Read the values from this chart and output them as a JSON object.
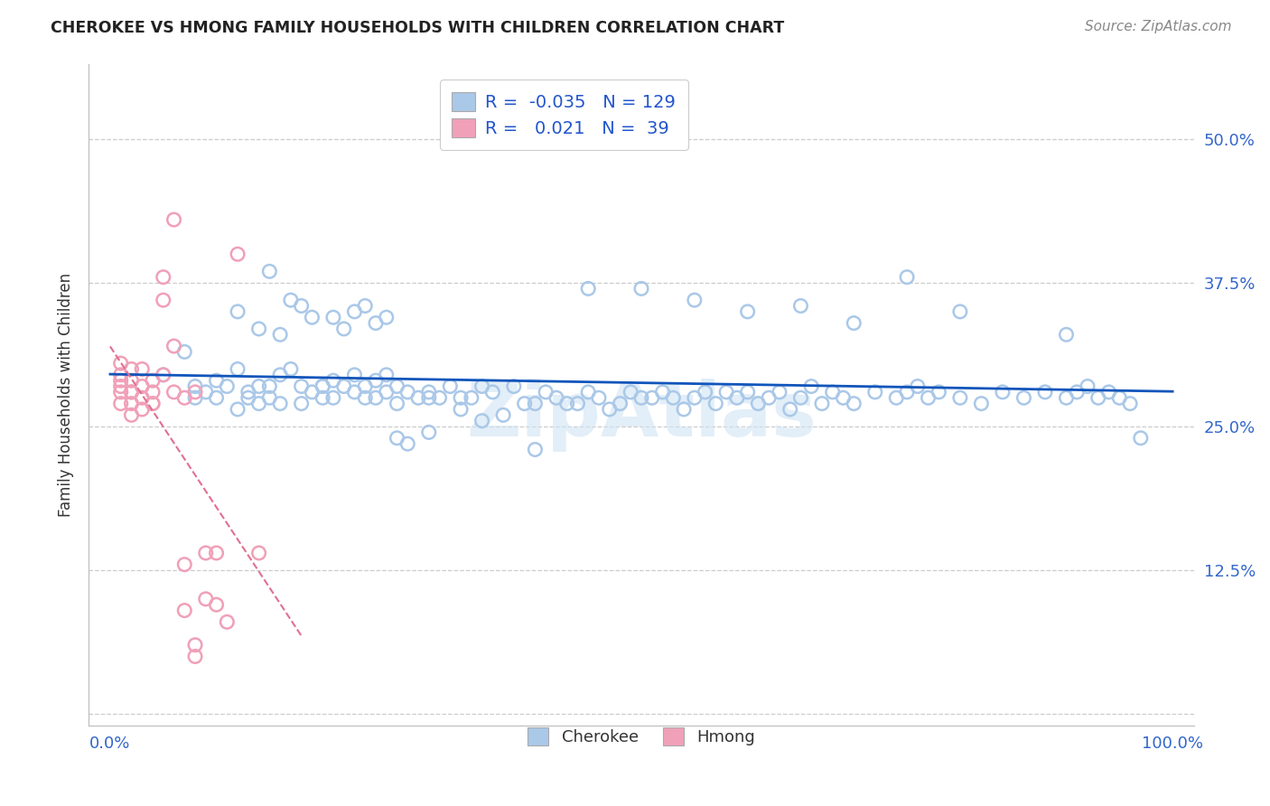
{
  "title": "CHEROKEE VS HMONG FAMILY HOUSEHOLDS WITH CHILDREN CORRELATION CHART",
  "source": "Source: ZipAtlas.com",
  "ylabel": "Family Households with Children",
  "xlim": [
    -0.02,
    1.02
  ],
  "ylim": [
    -0.01,
    0.565
  ],
  "yticks": [
    0.0,
    0.125,
    0.25,
    0.375,
    0.5
  ],
  "cherokee_R": -0.035,
  "cherokee_N": 129,
  "hmong_R": 0.021,
  "hmong_N": 39,
  "cherokee_color": "#aac8e8",
  "hmong_color": "#f0a0b8",
  "cherokee_line_color": "#1155bb",
  "hmong_line_color": "#e07090",
  "legend_text_color": "#2255cc",
  "tick_color": "#3366cc",
  "background_color": "#ffffff",
  "grid_color": "#cccccc",
  "cherokee_x": [
    0.05,
    0.07,
    0.08,
    0.08,
    0.09,
    0.1,
    0.1,
    0.11,
    0.12,
    0.12,
    0.13,
    0.13,
    0.14,
    0.14,
    0.15,
    0.15,
    0.16,
    0.16,
    0.17,
    0.18,
    0.18,
    0.19,
    0.2,
    0.2,
    0.21,
    0.21,
    0.22,
    0.23,
    0.23,
    0.24,
    0.24,
    0.25,
    0.25,
    0.26,
    0.26,
    0.27,
    0.27,
    0.28,
    0.29,
    0.3,
    0.3,
    0.31,
    0.32,
    0.33,
    0.33,
    0.34,
    0.35,
    0.36,
    0.37,
    0.38,
    0.39,
    0.4,
    0.41,
    0.42,
    0.43,
    0.44,
    0.45,
    0.46,
    0.47,
    0.48,
    0.49,
    0.5,
    0.51,
    0.52,
    0.53,
    0.54,
    0.55,
    0.56,
    0.57,
    0.58,
    0.59,
    0.6,
    0.61,
    0.62,
    0.63,
    0.64,
    0.65,
    0.66,
    0.67,
    0.68,
    0.69,
    0.7,
    0.72,
    0.74,
    0.75,
    0.76,
    0.77,
    0.78,
    0.8,
    0.82,
    0.84,
    0.86,
    0.88,
    0.9,
    0.91,
    0.92,
    0.93,
    0.94,
    0.95,
    0.96,
    0.12,
    0.14,
    0.15,
    0.16,
    0.17,
    0.18,
    0.19,
    0.2,
    0.21,
    0.22,
    0.23,
    0.24,
    0.25,
    0.26,
    0.27,
    0.28,
    0.3,
    0.35,
    0.4,
    0.45,
    0.5,
    0.55,
    0.6,
    0.65,
    0.7,
    0.75,
    0.8,
    0.9,
    0.97
  ],
  "cherokee_y": [
    0.295,
    0.315,
    0.285,
    0.275,
    0.28,
    0.29,
    0.275,
    0.285,
    0.3,
    0.265,
    0.28,
    0.275,
    0.285,
    0.27,
    0.275,
    0.285,
    0.295,
    0.27,
    0.3,
    0.27,
    0.285,
    0.28,
    0.285,
    0.275,
    0.29,
    0.275,
    0.285,
    0.28,
    0.295,
    0.275,
    0.285,
    0.275,
    0.29,
    0.28,
    0.295,
    0.27,
    0.285,
    0.28,
    0.275,
    0.28,
    0.275,
    0.275,
    0.285,
    0.275,
    0.265,
    0.275,
    0.285,
    0.28,
    0.26,
    0.285,
    0.27,
    0.27,
    0.28,
    0.275,
    0.27,
    0.27,
    0.28,
    0.275,
    0.265,
    0.27,
    0.28,
    0.275,
    0.275,
    0.28,
    0.275,
    0.265,
    0.275,
    0.28,
    0.27,
    0.28,
    0.275,
    0.28,
    0.27,
    0.275,
    0.28,
    0.265,
    0.275,
    0.285,
    0.27,
    0.28,
    0.275,
    0.27,
    0.28,
    0.275,
    0.28,
    0.285,
    0.275,
    0.28,
    0.275,
    0.27,
    0.28,
    0.275,
    0.28,
    0.275,
    0.28,
    0.285,
    0.275,
    0.28,
    0.275,
    0.27,
    0.35,
    0.335,
    0.385,
    0.33,
    0.36,
    0.355,
    0.345,
    0.285,
    0.345,
    0.335,
    0.35,
    0.355,
    0.34,
    0.345,
    0.24,
    0.235,
    0.245,
    0.255,
    0.23,
    0.37,
    0.37,
    0.36,
    0.35,
    0.355,
    0.34,
    0.38,
    0.35,
    0.33,
    0.24
  ],
  "hmong_x": [
    0.01,
    0.01,
    0.01,
    0.01,
    0.01,
    0.01,
    0.02,
    0.02,
    0.02,
    0.02,
    0.02,
    0.02,
    0.03,
    0.03,
    0.03,
    0.03,
    0.04,
    0.04,
    0.04,
    0.04,
    0.05,
    0.05,
    0.05,
    0.06,
    0.06,
    0.06,
    0.07,
    0.07,
    0.07,
    0.08,
    0.08,
    0.08,
    0.09,
    0.09,
    0.1,
    0.1,
    0.11,
    0.12,
    0.14
  ],
  "hmong_y": [
    0.285,
    0.295,
    0.305,
    0.27,
    0.28,
    0.29,
    0.28,
    0.27,
    0.26,
    0.29,
    0.3,
    0.28,
    0.275,
    0.285,
    0.265,
    0.3,
    0.28,
    0.27,
    0.29,
    0.27,
    0.38,
    0.36,
    0.295,
    0.43,
    0.32,
    0.28,
    0.13,
    0.09,
    0.275,
    0.06,
    0.05,
    0.28,
    0.14,
    0.1,
    0.095,
    0.14,
    0.08,
    0.4,
    0.14
  ]
}
